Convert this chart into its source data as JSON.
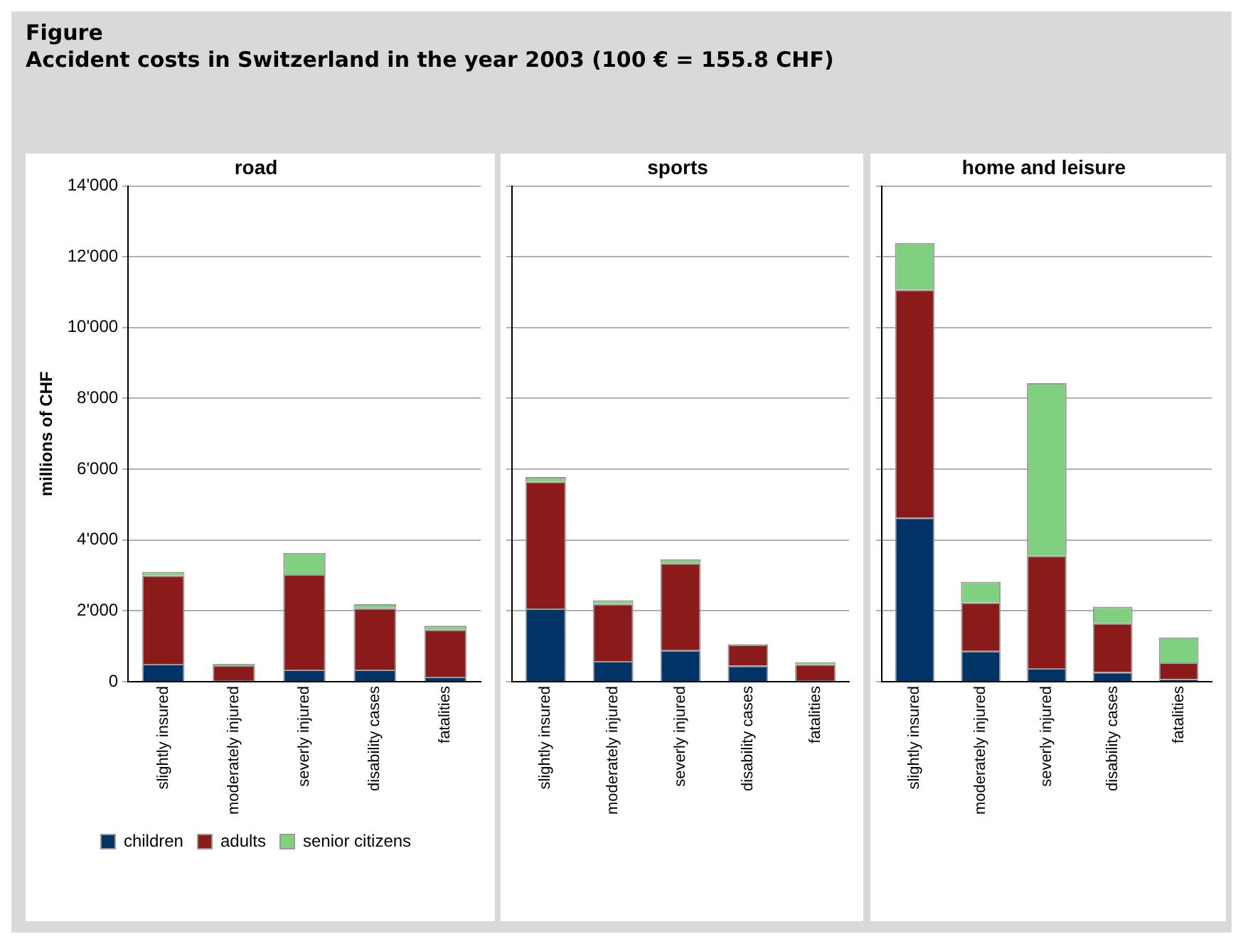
{
  "chart_data": [
    {
      "type": "bar",
      "title": "road",
      "ylabel": "millions of CHF",
      "annotations": [
        "Figure",
        "Accident costs in Switzerland in the year 2003 (100 € = 155.8 CHF)"
      ],
      "categories": [
        "slightly insured",
        "moderately injured",
        "severly injured",
        "disability cases",
        "fatalities"
      ],
      "stacked": true,
      "series": [
        {
          "name": "children",
          "color": "#003366",
          "values": [
            500,
            40,
            340,
            340,
            140
          ]
        },
        {
          "name": "adults",
          "color": "#8b1a1a",
          "values": [
            2500,
            420,
            2690,
            1740,
            1330
          ]
        },
        {
          "name": "senior citizens",
          "color": "#7fd07f",
          "values": [
            100,
            40,
            610,
            110,
            110
          ]
        }
      ],
      "ylim": [
        0,
        14000
      ],
      "yticks": [
        0,
        {
          "value": 2000,
          "label": "2'000"
        },
        {
          "value": 4000,
          "label": "4'000"
        },
        {
          "value": 6000,
          "label": "6'000"
        },
        {
          "value": 8000,
          "label": "8'000"
        },
        {
          "value": 10000,
          "label": "10'000"
        },
        {
          "value": 12000,
          "label": "12'000"
        },
        {
          "value": 14000,
          "label": "14'000"
        }
      ],
      "grid": "y",
      "legend": "bottom"
    },
    {
      "type": "bar",
      "title": "sports",
      "categories": [
        "slightly insured",
        "moderately injured",
        "severly injured",
        "disability cases",
        "fatalities"
      ],
      "stacked": true,
      "series": [
        {
          "color": "#003366",
          "values": [
            2070,
            580,
            890,
            450,
            40
          ]
        },
        {
          "color": "#8b1a1a",
          "values": [
            3580,
            1620,
            2460,
            600,
            450
          ]
        },
        {
          "color": "#7fd07f",
          "values": [
            130,
            100,
            110,
            20,
            60
          ]
        }
      ],
      "ylim": [
        0,
        14000
      ],
      "yticks": [
        0,
        2000,
        4000,
        6000,
        8000,
        10000,
        12000,
        14000
      ],
      "grid": "y",
      "tick_labels": "x"
    },
    {
      "type": "bar",
      "title": "home and leisure",
      "categories": [
        "slightly insured",
        "moderately injured",
        "severly injured",
        "disability cases",
        "fatalities"
      ],
      "stacked": true,
      "series": [
        {
          "color": "#003366",
          "values": [
            4630,
            870,
            380,
            270,
            70
          ]
        },
        {
          "color": "#8b1a1a",
          "values": [
            6440,
            1370,
            3180,
            1380,
            470
          ]
        },
        {
          "color": "#7fd07f",
          "values": [
            1320,
            580,
            4870,
            470,
            710
          ]
        }
      ],
      "ylim": [
        0,
        14000
      ],
      "yticks": [
        0,
        2000,
        4000,
        6000,
        8000,
        10000,
        12000,
        14000
      ],
      "grid": "y",
      "tick_labels": "x"
    }
  ]
}
